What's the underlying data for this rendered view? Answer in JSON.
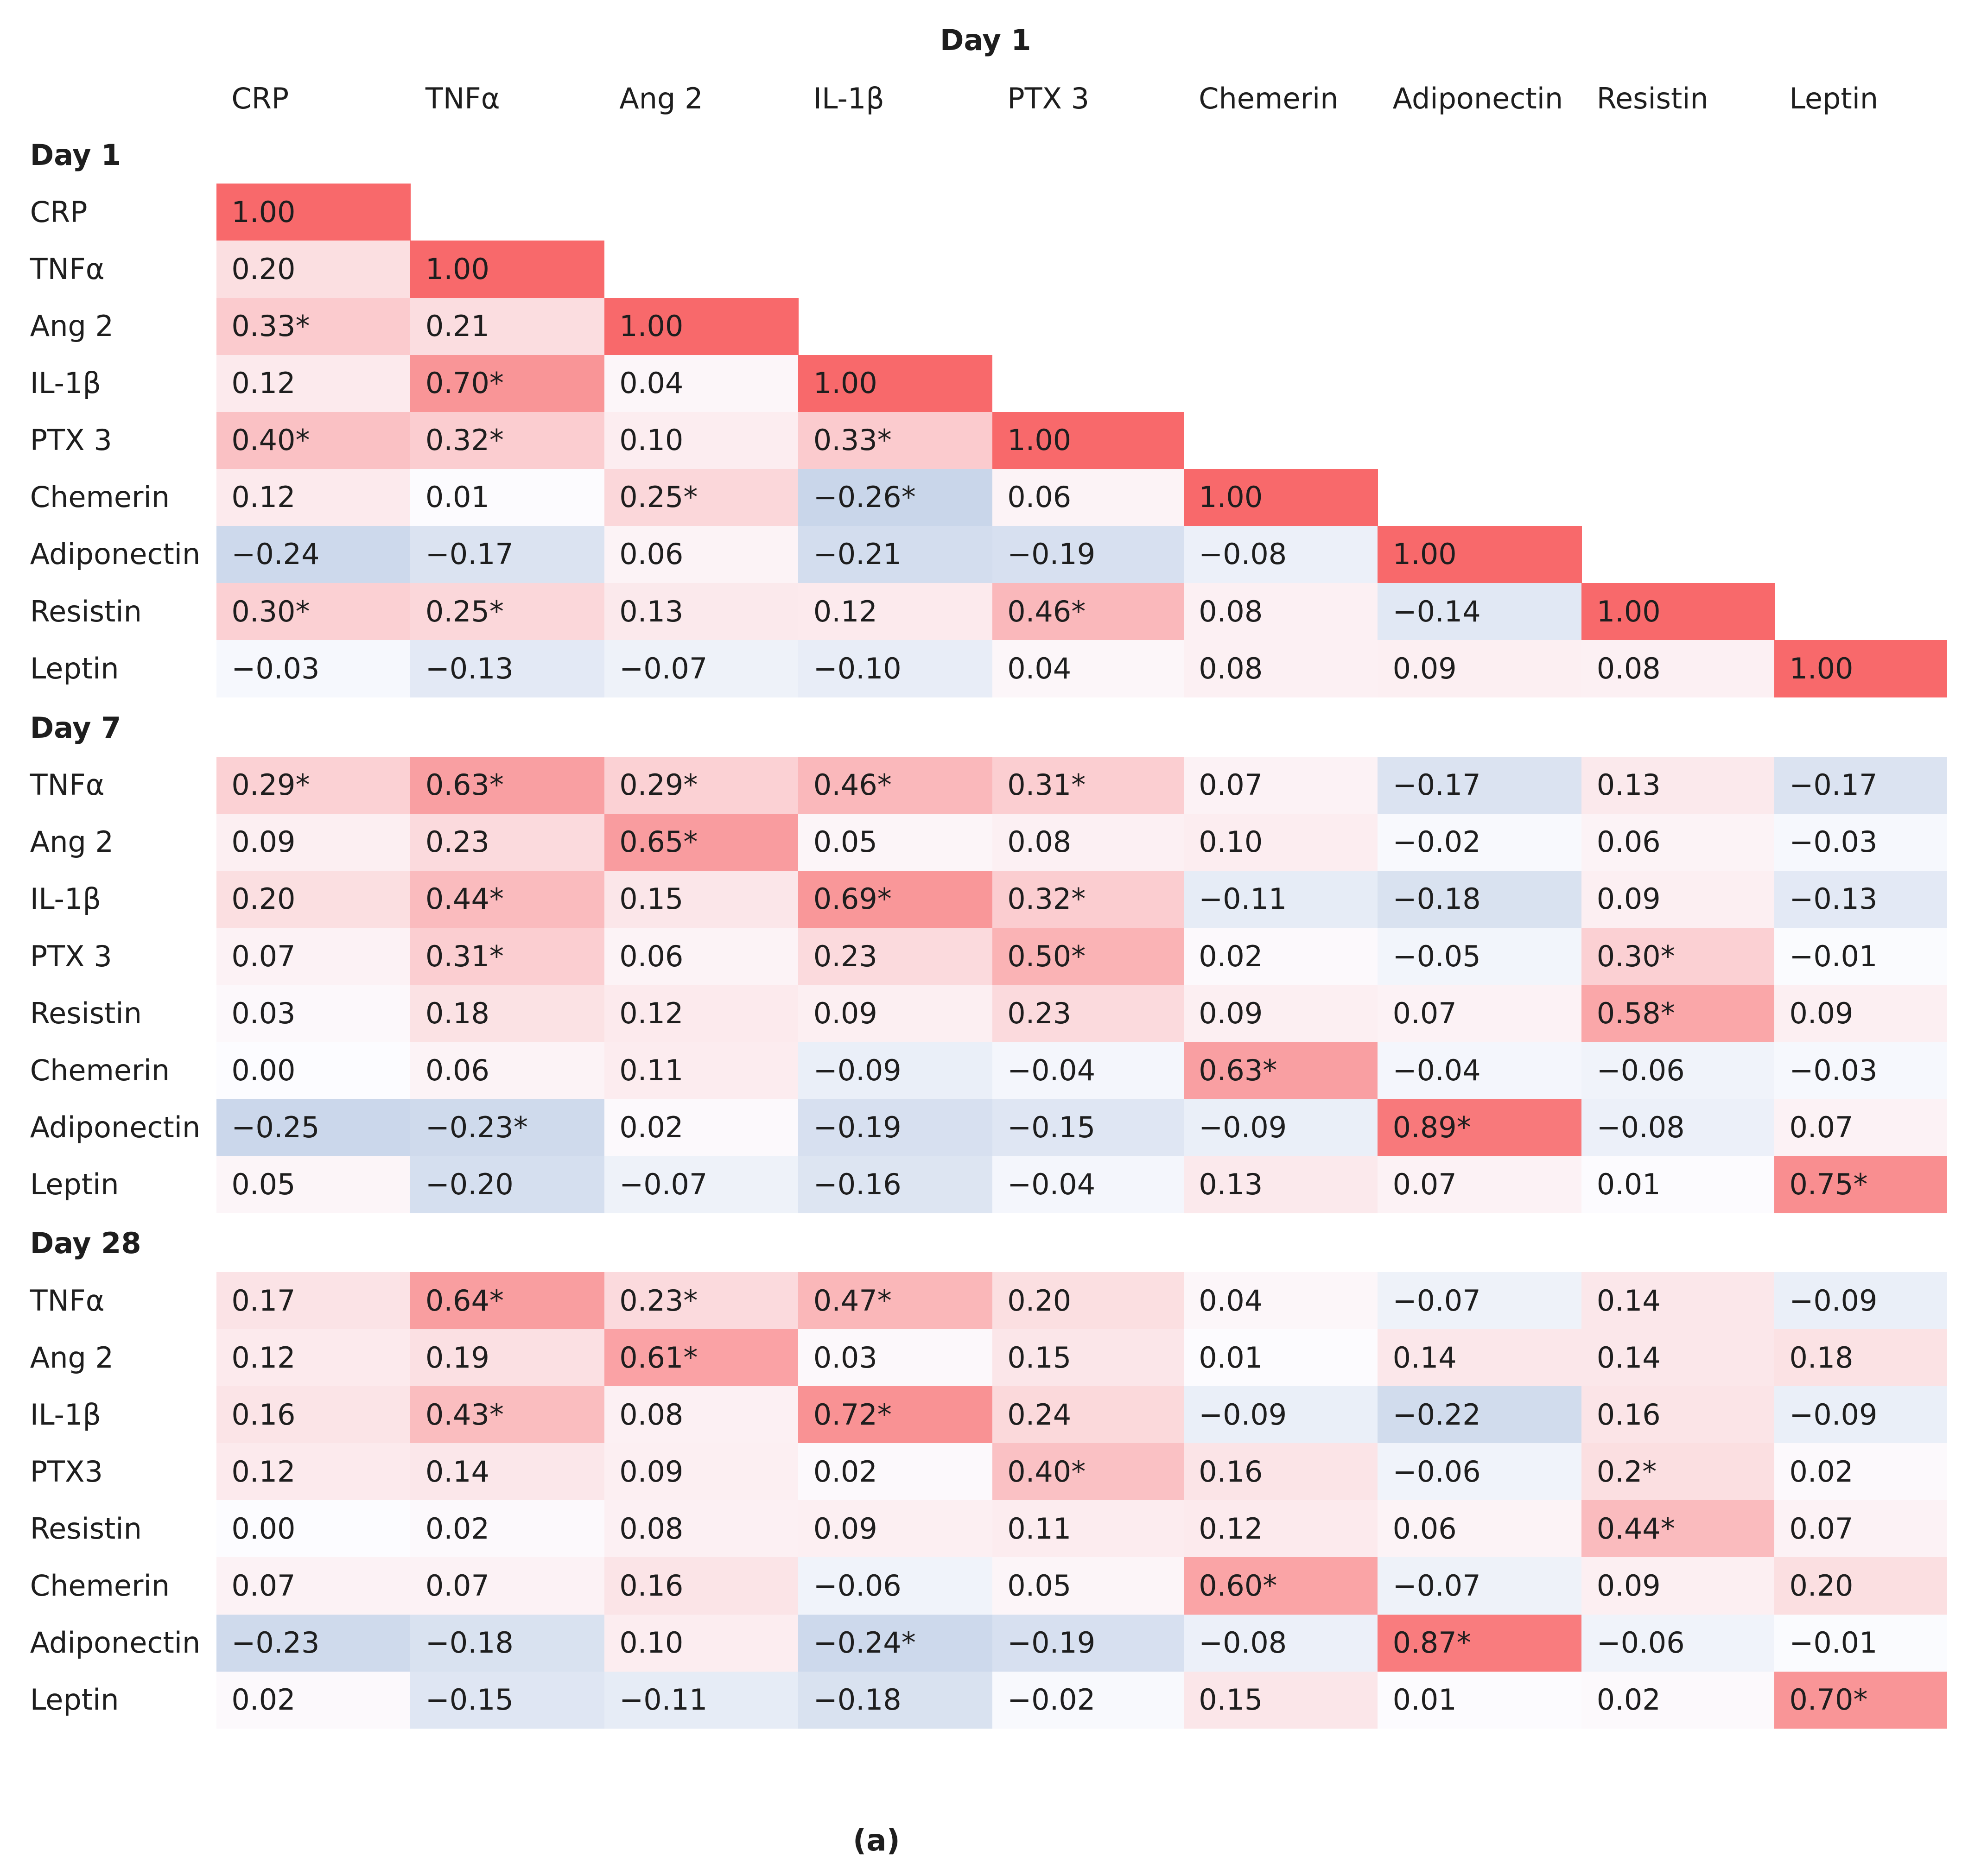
{
  "chart_data": {
    "type": "heatmap",
    "title": "Day 1",
    "caption": "(a)",
    "columns": [
      "CRP",
      "TNFα",
      "Ang 2",
      "IL-1β",
      "PTX 3",
      "Chemerin",
      "Adiponectin",
      "Resistin",
      "Leptin"
    ],
    "color_scale": {
      "min": -1,
      "max": 1,
      "negative": "#C9D6EA",
      "neutral": "#FCFCFF",
      "positive": "#F8696B"
    },
    "blocks": [
      {
        "label": "Day 1",
        "rows": [
          {
            "label": "CRP",
            "values": [
              "1.00",
              null,
              null,
              null,
              null,
              null,
              null,
              null,
              null
            ]
          },
          {
            "label": "TNFα",
            "values": [
              "0.20",
              "1.00",
              null,
              null,
              null,
              null,
              null,
              null,
              null
            ]
          },
          {
            "label": "Ang 2",
            "values": [
              "0.33*",
              "0.21",
              "1.00",
              null,
              null,
              null,
              null,
              null,
              null
            ]
          },
          {
            "label": "IL-1β",
            "values": [
              "0.12",
              "0.70*",
              "0.04",
              "1.00",
              null,
              null,
              null,
              null,
              null
            ]
          },
          {
            "label": "PTX 3",
            "values": [
              "0.40*",
              "0.32*",
              "0.10",
              "0.33*",
              "1.00",
              null,
              null,
              null,
              null
            ]
          },
          {
            "label": "Chemerin",
            "values": [
              "0.12",
              "0.01",
              "0.25*",
              "−0.26*",
              "0.06",
              "1.00",
              null,
              null,
              null
            ]
          },
          {
            "label": "Adiponectin",
            "values": [
              "−0.24",
              "−0.17",
              "0.06",
              "−0.21",
              "−0.19",
              "−0.08",
              "1.00",
              null,
              null
            ]
          },
          {
            "label": "Resistin",
            "values": [
              "0.30*",
              "0.25*",
              "0.13",
              "0.12",
              "0.46*",
              "0.08",
              "−0.14",
              "1.00",
              null
            ]
          },
          {
            "label": "Leptin",
            "values": [
              "−0.03",
              "−0.13",
              "−0.07",
              "−0.10",
              "0.04",
              "0.08",
              "0.09",
              "0.08",
              "1.00"
            ]
          }
        ]
      },
      {
        "label": "Day 7",
        "rows": [
          {
            "label": "TNFα",
            "values": [
              "0.29*",
              "0.63*",
              "0.29*",
              "0.46*",
              "0.31*",
              "0.07",
              "−0.17",
              "0.13",
              "−0.17"
            ]
          },
          {
            "label": "Ang 2",
            "values": [
              "0.09",
              "0.23",
              "0.65*",
              "0.05",
              "0.08",
              "0.10",
              "−0.02",
              "0.06",
              "−0.03"
            ]
          },
          {
            "label": "IL-1β",
            "values": [
              "0.20",
              "0.44*",
              "0.15",
              "0.69*",
              "0.32*",
              "−0.11",
              "−0.18",
              "0.09",
              "−0.13"
            ]
          },
          {
            "label": "PTX 3",
            "values": [
              "0.07",
              "0.31*",
              "0.06",
              "0.23",
              "0.50*",
              "0.02",
              "−0.05",
              "0.30*",
              "−0.01"
            ]
          },
          {
            "label": "Resistin",
            "values": [
              "0.03",
              "0.18",
              "0.12",
              "0.09",
              "0.23",
              "0.09",
              "0.07",
              "0.58*",
              "0.09"
            ]
          },
          {
            "label": "Chemerin",
            "values": [
              "0.00",
              "0.06",
              "0.11",
              "−0.09",
              "−0.04",
              "0.63*",
              "−0.04",
              "−0.06",
              "−0.03"
            ]
          },
          {
            "label": "Adiponectin",
            "values": [
              "−0.25",
              "−0.23*",
              "0.02",
              "−0.19",
              "−0.15",
              "−0.09",
              "0.89*",
              "−0.08",
              "0.07"
            ]
          },
          {
            "label": "Leptin",
            "values": [
              "0.05",
              "−0.20",
              "−0.07",
              "−0.16",
              "−0.04",
              "0.13",
              "0.07",
              "0.01",
              "0.75*"
            ]
          }
        ]
      },
      {
        "label": "Day 28",
        "rows": [
          {
            "label": "TNFα",
            "values": [
              "0.17",
              "0.64*",
              "0.23*",
              "0.47*",
              "0.20",
              "0.04",
              "−0.07",
              "0.14",
              "−0.09"
            ]
          },
          {
            "label": "Ang 2",
            "values": [
              "0.12",
              "0.19",
              "0.61*",
              "0.03",
              "0.15",
              "0.01",
              "0.14",
              "0.14",
              "0.18"
            ]
          },
          {
            "label": "IL-1β",
            "values": [
              "0.16",
              "0.43*",
              "0.08",
              "0.72*",
              "0.24",
              "−0.09",
              "−0.22",
              "0.16",
              "−0.09"
            ]
          },
          {
            "label": "PTX3",
            "values": [
              "0.12",
              "0.14",
              "0.09",
              "0.02",
              "0.40*",
              "0.16",
              "−0.06",
              "0.2*",
              "0.02"
            ]
          },
          {
            "label": "Resistin",
            "values": [
              "0.00",
              "0.02",
              "0.08",
              "0.09",
              "0.11",
              "0.12",
              "0.06",
              "0.44*",
              "0.07"
            ]
          },
          {
            "label": "Chemerin",
            "values": [
              "0.07",
              "0.07",
              "0.16",
              "−0.06",
              "0.05",
              "0.60*",
              "−0.07",
              "0.09",
              "0.20"
            ]
          },
          {
            "label": "Adiponectin",
            "values": [
              "−0.23",
              "−0.18",
              "0.10",
              "−0.24*",
              "−0.19",
              "−0.08",
              "0.87*",
              "−0.06",
              "−0.01"
            ]
          },
          {
            "label": "Leptin",
            "values": [
              "0.02",
              "−0.15",
              "−0.11",
              "−0.18",
              "−0.02",
              "0.15",
              "0.01",
              "0.02",
              "0.70*"
            ]
          }
        ]
      }
    ]
  }
}
